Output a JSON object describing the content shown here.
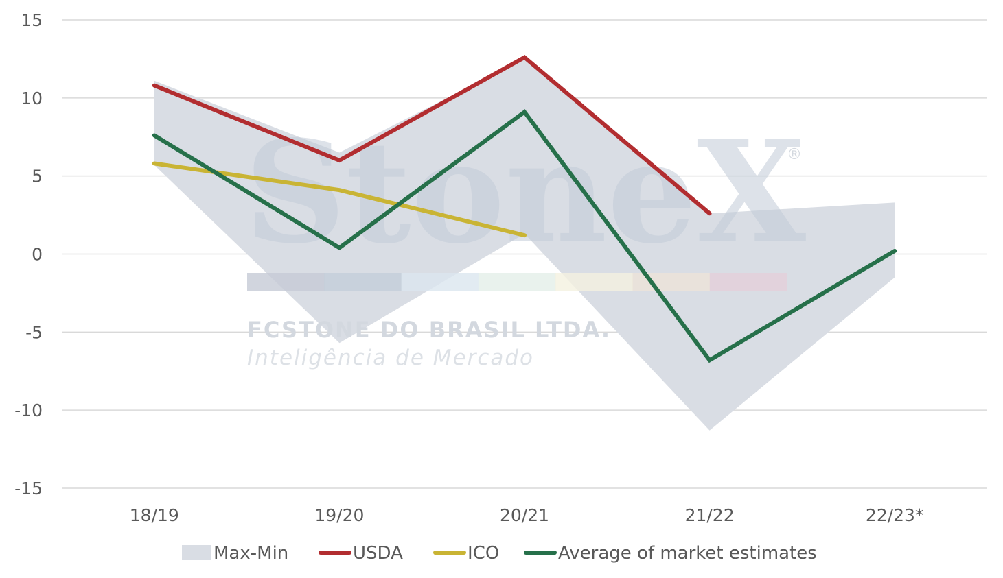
{
  "watermark": {
    "brand": "StoneX",
    "registered": "®",
    "company": "FCSTONE DO BRASIL LTDA.",
    "department": "Inteligência de Mercado",
    "band_colors": [
      "#c5cbd6",
      "#c3ceda",
      "#dbe6ef",
      "#e4efe9",
      "#f4f1e0",
      "#ece3d8",
      "#e3d0da"
    ]
  },
  "chart_data": {
    "type": "line",
    "categories": [
      "18/19",
      "19/20",
      "20/21",
      "21/22",
      "22/23*"
    ],
    "ylim": [
      -15,
      15
    ],
    "yticks": [
      15,
      10,
      5,
      0,
      -5,
      -10,
      -15
    ],
    "ytick_labels": [
      "15",
      "10",
      "5",
      "0",
      "-5",
      "-10",
      "-15"
    ],
    "grid": true,
    "legend_position": "bottom",
    "band": {
      "name": "Max-Min",
      "color": "#d9dde4",
      "max": [
        11.1,
        6.5,
        12.5,
        2.6,
        3.3
      ],
      "min": [
        5.7,
        -5.7,
        1.3,
        -11.3,
        -1.5
      ]
    },
    "series": [
      {
        "name": "USDA",
        "color": "#b22d30",
        "values": [
          10.8,
          6.0,
          12.6,
          2.6,
          null
        ]
      },
      {
        "name": "ICO",
        "color": "#c9b434",
        "values": [
          5.8,
          4.1,
          1.2,
          null,
          null
        ]
      },
      {
        "name": "Average of market estimates",
        "color": "#26704a",
        "values": [
          7.6,
          0.4,
          9.1,
          -6.8,
          0.2
        ]
      }
    ]
  }
}
